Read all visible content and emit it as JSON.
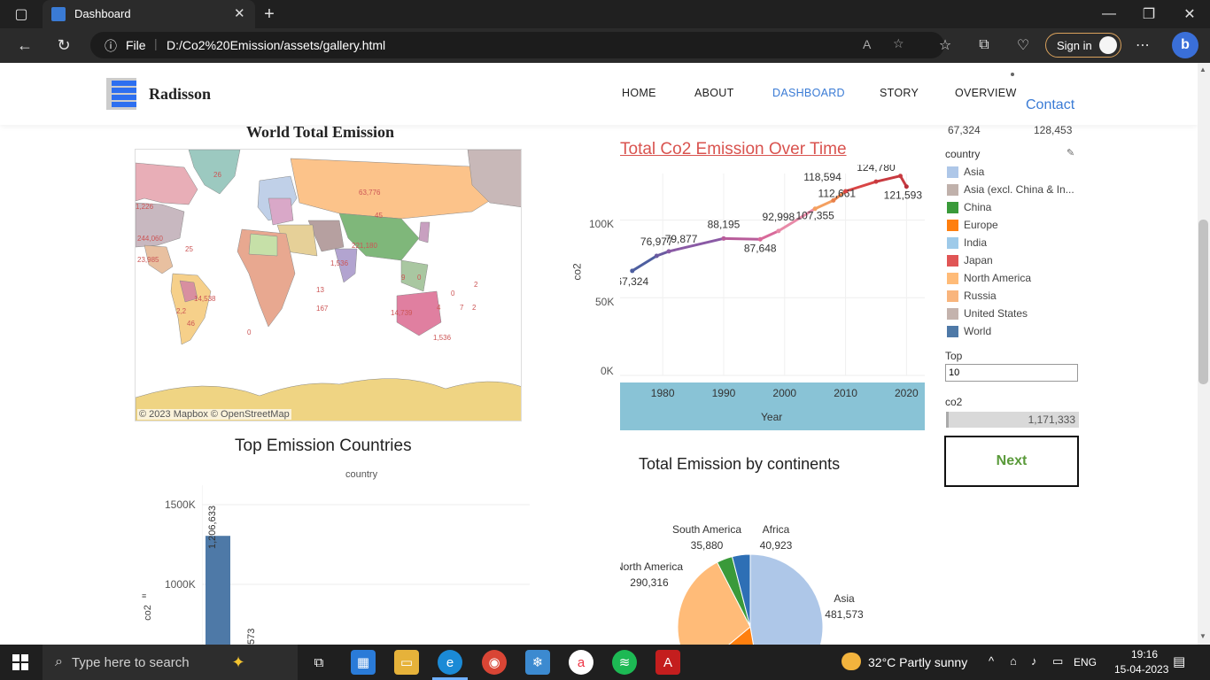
{
  "browser": {
    "tab_title": "Dashboard",
    "file_label": "File",
    "url": "D:/Co2%20Emission/assets/gallery.html",
    "sign_in": "Sign in"
  },
  "site": {
    "brand": "Radisson",
    "nav": [
      "HOME",
      "ABOUT",
      "DASHBOARD",
      "STORY",
      "OVERVIEW"
    ],
    "contact": "Contact"
  },
  "map": {
    "title": "World Total Emission",
    "attribution": "© 2023 Mapbox  © OpenStreetMap",
    "labels": [
      "26",
      "63,776",
      "1,226",
      "244,060",
      "25",
      "221,180",
      "14,739",
      "167",
      "13",
      "23,985",
      "2,2",
      "14,538",
      "1,536",
      "1,536",
      "0",
      "4",
      "9",
      "0",
      "0",
      "2",
      "7",
      "46",
      "45",
      "2"
    ]
  },
  "line_chart": {
    "title": "Total Co2 Emission Over Time",
    "ylabel": "co2",
    "xlabel": "Year",
    "y_ticks": [
      "100K",
      "50K",
      "0K"
    ],
    "x_ticks": [
      "1980",
      "1990",
      "2000",
      "2010",
      "2020"
    ]
  },
  "filters": {
    "range_min": "67,324",
    "range_max": "128,453",
    "country_label": "country",
    "top_label": "Top",
    "top_value": "10",
    "co2_label": "co2",
    "co2_value": "1,171,333",
    "next": "Next"
  },
  "legend": [
    {
      "name": "Asia",
      "color": "#aec7e8"
    },
    {
      "name": "Asia (excl. China & In...",
      "color": "#c0b1ab"
    },
    {
      "name": "China",
      "color": "#3a9a3a"
    },
    {
      "name": "Europe",
      "color": "#ff7f0e"
    },
    {
      "name": "India",
      "color": "#9ecae9"
    },
    {
      "name": "Japan",
      "color": "#e05555"
    },
    {
      "name": "North America",
      "color": "#ffbb78"
    },
    {
      "name": "Russia",
      "color": "#f9b57d"
    },
    {
      "name": "United States",
      "color": "#c4b3ad"
    },
    {
      "name": "World",
      "color": "#4e79a7"
    }
  ],
  "bar_chart": {
    "title": "Top Emission Countries",
    "header": "country",
    "ylabel": "co2",
    "y_ticks": [
      "1500K",
      "1000K"
    ],
    "bar_labels": [
      "1,206,633",
      "573"
    ]
  },
  "pie_chart": {
    "title": "Total Emission by continents"
  },
  "taskbar": {
    "search_placeholder": "Type here to search",
    "weather": "32°C  Partly sunny",
    "lang": "ENG",
    "time": "19:16",
    "date": "15-04-2023"
  },
  "chart_data": [
    {
      "type": "line",
      "title": "Total Co2 Emission Over Time",
      "xlabel": "Year",
      "ylabel": "co2",
      "x": [
        1975,
        1979,
        1981,
        1990,
        1996,
        1999,
        2005,
        2008,
        2010,
        2015,
        2019,
        2020
      ],
      "values": [
        67324,
        76977,
        79877,
        88195,
        87648,
        92998,
        107355,
        112661,
        118594,
        124780,
        128453,
        121593
      ],
      "point_labels": [
        "67,324",
        "76,977",
        "79,877",
        "88,195",
        "87,648",
        "92,998",
        "107,355",
        "112,661",
        "118,594",
        "124,780",
        "",
        "121,593"
      ],
      "ylim": [
        0,
        130000
      ],
      "xlim": [
        1973,
        2023
      ]
    },
    {
      "type": "bar",
      "title": "Top Emission Countries",
      "ylabel": "co2",
      "values": [
        1206633,
        573
      ],
      "value_labels": [
        "1,206,633",
        "573"
      ],
      "ylim": [
        0,
        1500000
      ]
    },
    {
      "type": "pie",
      "title": "Total Emission by continents",
      "categories": [
        "Asia",
        "Europe",
        "North America",
        "South America",
        "Africa"
      ],
      "values": [
        481573,
        170000,
        290316,
        35880,
        40923
      ],
      "value_labels": [
        "481,573",
        "",
        "290,316",
        "35,880",
        "40,923"
      ],
      "colors": [
        "#aec7e8",
        "#ff7f0e",
        "#ffbb78",
        "#3a9a3a",
        "#2e6fb5"
      ]
    }
  ]
}
